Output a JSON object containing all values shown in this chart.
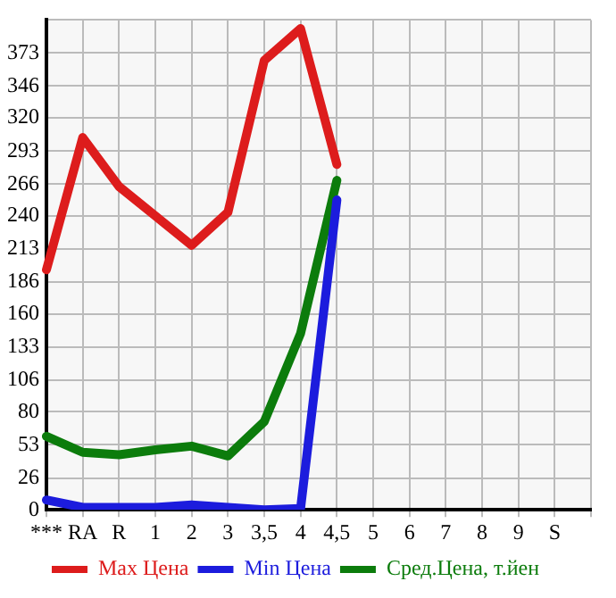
{
  "chart_data": {
    "type": "line",
    "categories": [
      "***",
      "RA",
      "R",
      "1",
      "2",
      "3",
      "3,5",
      "4",
      "4,5",
      "5",
      "6",
      "7",
      "8",
      "9",
      "S",
      null
    ],
    "series": [
      {
        "name": "Max Цена",
        "color": "#dd1c1c",
        "values": [
          196,
          304,
          264,
          240,
          216,
          243,
          367,
          393,
          282,
          null,
          null,
          null,
          null,
          null,
          null,
          null
        ]
      },
      {
        "name": "Min Цена",
        "color": "#1c1cdd",
        "values": [
          8,
          2,
          2,
          2,
          4,
          2,
          0,
          1,
          253,
          null,
          null,
          null,
          null,
          null,
          null,
          null
        ]
      },
      {
        "name": "Сред.Цена, т.йен",
        "color": "#0c7c0c",
        "values": [
          60,
          47,
          45,
          49,
          52,
          44,
          72,
          144,
          269,
          null,
          null,
          null,
          null,
          null,
          null,
          null
        ]
      }
    ],
    "ylim": [
      0,
      400
    ],
    "yticks": [
      0,
      26,
      53,
      80,
      106,
      133,
      160,
      186,
      213,
      240,
      266,
      293,
      320,
      346,
      373,
      {
        "value": 400,
        "label": null
      }
    ],
    "grid": true,
    "legend": "bottom",
    "marker": "none",
    "line_style": "solid"
  }
}
